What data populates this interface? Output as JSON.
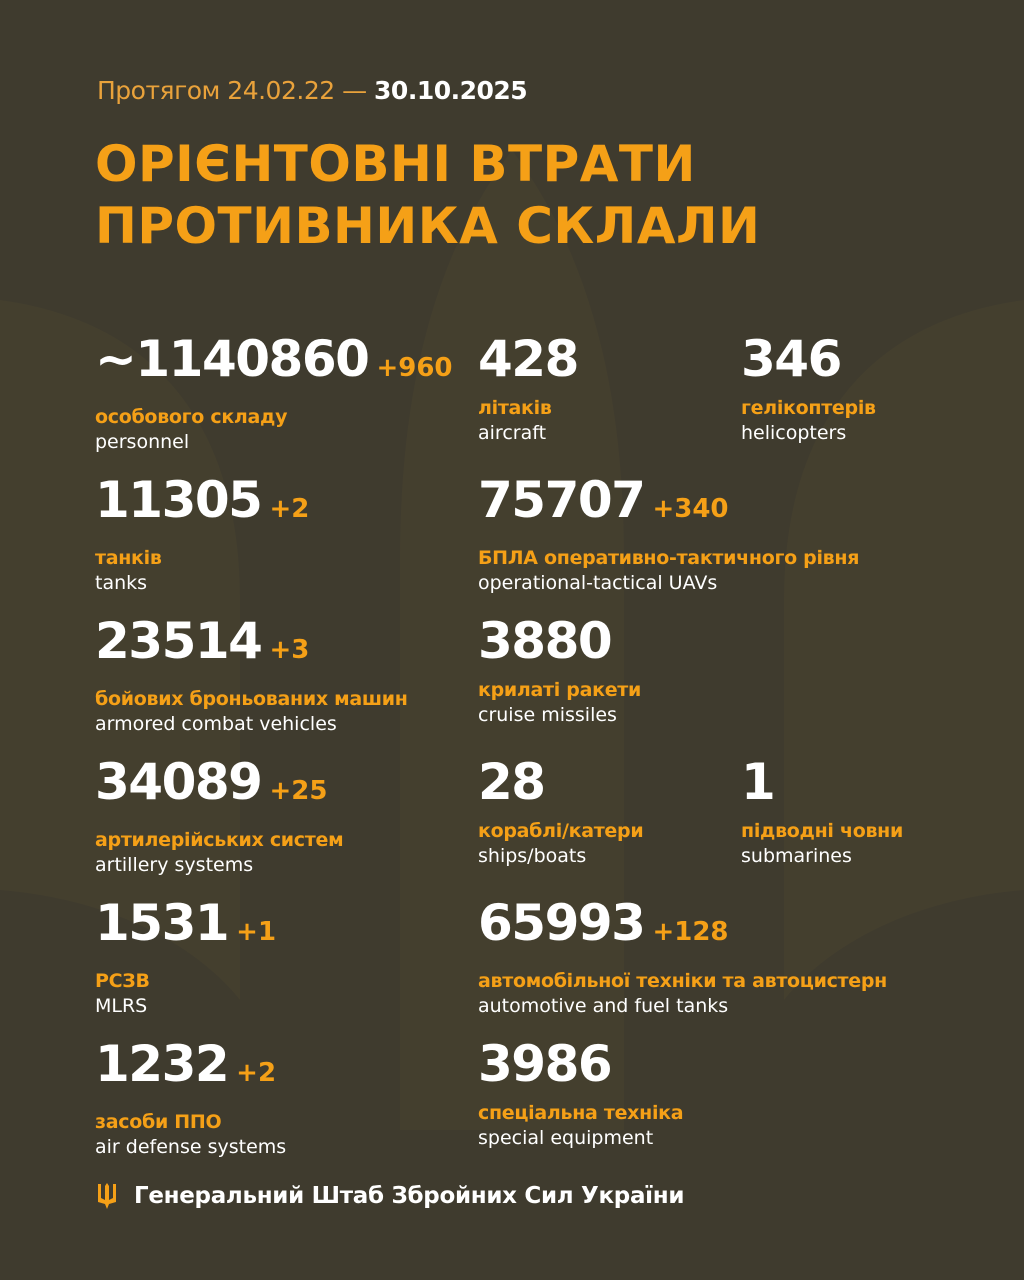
{
  "header": {
    "prefix": "Протягом 24.02.22 —",
    "date": "30.10.2025",
    "title_line1": "ОРІЄНТОВНІ ВТРАТИ",
    "title_line2": "ПРОТИВНИКА СКЛАЛИ"
  },
  "colors": {
    "background": "#3f3b2e",
    "accent": "#f5a017",
    "text": "#ffffff"
  },
  "items": [
    {
      "value": "~1140860",
      "delta": "+960",
      "ua": "особового складу",
      "en": "personnel"
    },
    {
      "value": "428",
      "delta": "",
      "ua": "літаків",
      "en": "aircraft"
    },
    {
      "value": "346",
      "delta": "",
      "ua": "гелікоптерів",
      "en": "helicopters"
    },
    {
      "value": "11305",
      "delta": "+2",
      "ua": "танків",
      "en": "tanks"
    },
    {
      "value": "75707",
      "delta": "+340",
      "ua": "БПЛА оперативно-тактичного рівня",
      "en": "operational-tactical UAVs"
    },
    {
      "value": "23514",
      "delta": "+3",
      "ua": "бойових броньованих машин",
      "en": "armored combat vehicles"
    },
    {
      "value": "3880",
      "delta": "",
      "ua": "крилаті ракети",
      "en": "cruise missiles"
    },
    {
      "value": "34089",
      "delta": "+25",
      "ua": "артилерійських систем",
      "en": "artillery systems"
    },
    {
      "value": "28",
      "delta": "",
      "ua": "кораблі/катери",
      "en": "ships/boats"
    },
    {
      "value": "1",
      "delta": "",
      "ua": "підводні човни",
      "en": "submarines"
    },
    {
      "value": "1531",
      "delta": "+1",
      "ua": "РСЗВ",
      "en": "MLRS"
    },
    {
      "value": "65993",
      "delta": "+128",
      "ua": "автомобільної техніки та автоцистерн",
      "en": "automotive and fuel tanks"
    },
    {
      "value": "1232",
      "delta": "+2",
      "ua": "засоби ППО",
      "en": "air defense systems"
    },
    {
      "value": "3986",
      "delta": "",
      "ua": "спеціальна техніка",
      "en": "special equipment"
    }
  ],
  "footer": {
    "icon": "trident-icon",
    "text": "Генеральний Штаб Збройних Сил України"
  }
}
